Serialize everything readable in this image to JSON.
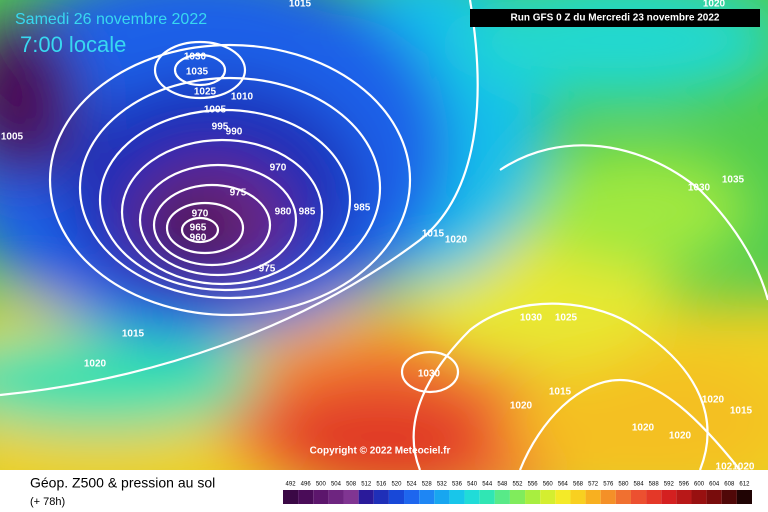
{
  "header": {
    "date": "Samedi 26 novembre 2022",
    "time": "7:00 locale",
    "run": "Run GFS 0 Z du Mercredi 23 novembre 2022",
    "copyright": "Copyright © 2022 Meteociel.fr"
  },
  "footer": {
    "title": "Géop. Z500 & pression au sol",
    "lead": "(+ 78h)"
  },
  "isobar_labels": [
    "1015",
    "1030",
    "1035",
    "1025",
    "1010",
    "1005",
    "1005",
    "995",
    "990",
    "970",
    "975",
    "980",
    "985",
    "985",
    "970",
    "965",
    "960",
    "975",
    "1015",
    "1020",
    "1015",
    "1020",
    "1030",
    "1030",
    "1025",
    "1015",
    "1020",
    "1020",
    "1015",
    "1020",
    "1020",
    "1030",
    "1035",
    "1020",
    "1021020"
  ],
  "colorbar": {
    "labels": [
      "492",
      "496",
      "500",
      "504",
      "508",
      "512",
      "516",
      "520",
      "524",
      "528",
      "532",
      "536",
      "540",
      "544",
      "548",
      "552",
      "556",
      "560",
      "564",
      "568",
      "572",
      "576",
      "580",
      "584",
      "588",
      "592",
      "596",
      "600",
      "604",
      "608",
      "612"
    ],
    "colors": [
      "#3a0845",
      "#4a0c58",
      "#5c166c",
      "#6e2580",
      "#803592",
      "#2a1a9a",
      "#1f2fb8",
      "#1848d8",
      "#1e66ee",
      "#1e86f4",
      "#18a6f0",
      "#18c6ea",
      "#20dcd8",
      "#30e6b4",
      "#58ea88",
      "#80ec5c",
      "#a8ee40",
      "#d4ee30",
      "#f4ea28",
      "#f8d020",
      "#f8b020",
      "#f49028",
      "#f07030",
      "#ec5030",
      "#e43828",
      "#d42020",
      "#b81818",
      "#981010",
      "#780c0c",
      "#500808",
      "#200404"
    ]
  }
}
